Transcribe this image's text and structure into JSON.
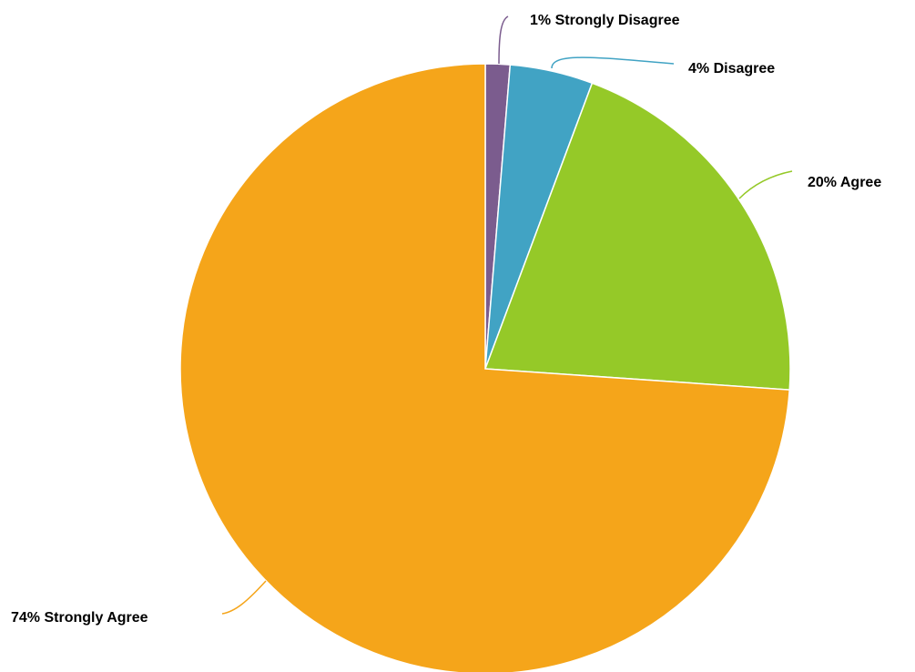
{
  "chart_data": {
    "type": "pie",
    "title": "",
    "start_angle_deg": 0,
    "direction": "clockwise",
    "slices": [
      {
        "label": "Strongly Disagree",
        "value": 1.3,
        "display": "1% Strongly Disagree",
        "color": "#7b5c8e"
      },
      {
        "label": "Disagree",
        "value": 4.4,
        "display": "4% Disagree",
        "color": "#41a3c4"
      },
      {
        "label": "Agree",
        "value": 20.4,
        "display": "20% Agree",
        "color": "#95c928"
      },
      {
        "label": "Strongly Agree",
        "value": 73.9,
        "display": "74% Strongly Agree",
        "color": "#f5a51a"
      }
    ]
  }
}
